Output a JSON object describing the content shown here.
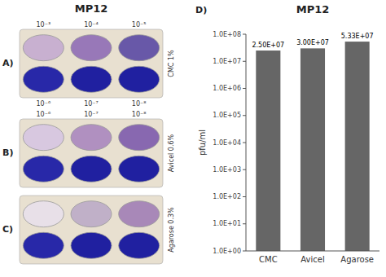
{
  "chart_data": [
    {
      "type": "plates",
      "title": "MP12",
      "color": "#e8e0d0",
      "trays": [
        {
          "label": "A)",
          "row_label": "CMC 1%",
          "dilutions_above": [
            "10⁻³",
            "10⁻⁴",
            "10⁻⁵"
          ],
          "dilutions_below": [
            "10⁻⁶",
            "10⁻⁷",
            "10⁻⁸"
          ]
        },
        {
          "label": "B)",
          "row_label": "Avicel 0.6%",
          "dilutions_above": [
            "10⁻⁶",
            "10⁻⁷",
            "10⁻⁸"
          ],
          "dilutions_below": []
        },
        {
          "label": "C)",
          "row_label": "Agarose 0.3%",
          "dilutions_above": [],
          "dilutions_below": []
        }
      ]
    },
    {
      "type": "bar",
      "title": "MP12",
      "annotations": [
        "D)"
      ],
      "ylabel": "pfu/ml",
      "categories": [
        "CMC",
        "Avicel",
        "Agarose"
      ],
      "values": [
        25000000,
        30000000,
        53300000
      ],
      "value_labels": [
        "2.50E+07",
        "3.00E+07",
        "5.33E+07"
      ],
      "data_labels": true,
      "color": "#666666",
      "log": "y",
      "grid": false,
      "ylim": [
        1,
        100000000
      ],
      "yticks": [
        {
          "value": 1,
          "label": "1.0E+00"
        },
        {
          "value": 10,
          "label": "1.0E+01"
        },
        {
          "value": 100,
          "label": "1.0E+02"
        },
        {
          "value": 1000,
          "label": "1.0E+03"
        },
        {
          "value": 10000,
          "label": "1.0E+04"
        },
        {
          "value": 100000,
          "label": "1.0E+05"
        },
        {
          "value": 1000000,
          "label": "1.0E+06"
        },
        {
          "value": 10000000,
          "label": "1.0E+07"
        },
        {
          "value": 100000000,
          "label": "1.0E+08"
        }
      ]
    }
  ]
}
